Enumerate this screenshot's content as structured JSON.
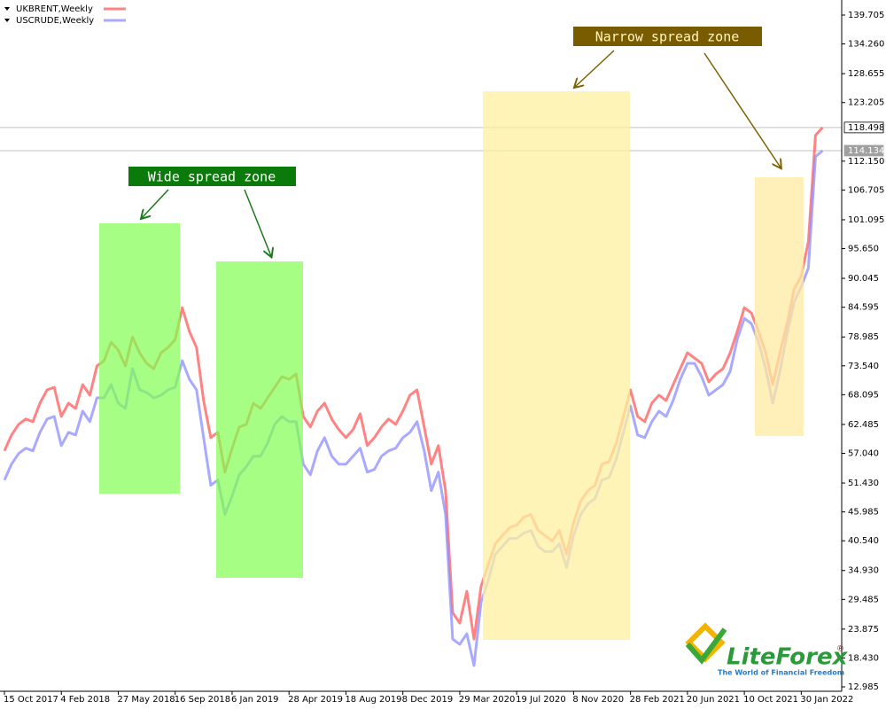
{
  "chart_data": {
    "type": "line",
    "categories": [
      "15 Oct 2017",
      null,
      null,
      null,
      null,
      null,
      null,
      null,
      "4 Feb 2018",
      null,
      null,
      null,
      null,
      null,
      null,
      null,
      "27 May 2018",
      null,
      null,
      null,
      null,
      null,
      null,
      null,
      "16 Sep 2018",
      null,
      null,
      null,
      null,
      null,
      null,
      null,
      "6 Jan 2019",
      null,
      null,
      null,
      null,
      null,
      null,
      null,
      "28 Apr 2019",
      null,
      null,
      null,
      null,
      null,
      null,
      null,
      "18 Aug 2019",
      null,
      null,
      null,
      null,
      null,
      null,
      null,
      "8 Dec 2019",
      null,
      null,
      null,
      null,
      null,
      null,
      null,
      "29 Mar 2020",
      null,
      null,
      null,
      null,
      null,
      null,
      null,
      "19 Jul 2020",
      null,
      null,
      null,
      null,
      null,
      null,
      null,
      "8 Nov 2020",
      null,
      null,
      null,
      null,
      null,
      null,
      null,
      "28 Feb 2021",
      null,
      null,
      null,
      null,
      null,
      null,
      null,
      "20 Jun 2021",
      null,
      null,
      null,
      null,
      null,
      null,
      null,
      "10 Oct 2021",
      null,
      null,
      null,
      null,
      null,
      null,
      null,
      "30 Jan 2022",
      null,
      null,
      null
    ],
    "series": [
      {
        "name": "UKBRENT,Weekly",
        "color": "#ff5a5a",
        "values": [
          57.5,
          60.5,
          62.5,
          63.5,
          63,
          66.5,
          69,
          69.5,
          64,
          66.5,
          65.5,
          70,
          68,
          73.5,
          74.5,
          78,
          76.5,
          73.5,
          79,
          76,
          74,
          73,
          76,
          77,
          78.5,
          84.5,
          80,
          77,
          67,
          60,
          61,
          53.5,
          58,
          62,
          62.5,
          66.5,
          65.5,
          67.5,
          69.5,
          71.5,
          71,
          72,
          64,
          62,
          65,
          66.5,
          63.5,
          61.5,
          60,
          61.5,
          64.5,
          58.5,
          60,
          62,
          63.5,
          62.5,
          65,
          68,
          69,
          62,
          55,
          58.5,
          50,
          27,
          25,
          31,
          22,
          32,
          36,
          40,
          41.5,
          43,
          43.5,
          45,
          45.5,
          42.5,
          41.5,
          40.5,
          42.5,
          38,
          44,
          48,
          50,
          51,
          55,
          55.5,
          59,
          64,
          69,
          64,
          63,
          66.5,
          68,
          67,
          70,
          73,
          76,
          75,
          74,
          70.5,
          72,
          73,
          76,
          80,
          84.5,
          83.5,
          80,
          76,
          70,
          76,
          81.5,
          88,
          90.5,
          97,
          117,
          118.498
        ]
      },
      {
        "name": "USCRUDE,Weekly",
        "color": "#8c8cff",
        "values": [
          52,
          55,
          57,
          58,
          57.5,
          61,
          63.5,
          64,
          58.5,
          61,
          60.5,
          65,
          63,
          67.5,
          67.5,
          70,
          66.5,
          65.5,
          73,
          69,
          68.5,
          67.5,
          68,
          69,
          69.5,
          74.5,
          71,
          69,
          60,
          51,
          52,
          45.5,
          49,
          53,
          54.5,
          56.5,
          56.5,
          59,
          62.5,
          64,
          63,
          63,
          55,
          53,
          57.5,
          60,
          56.5,
          55,
          55,
          56.5,
          58,
          53.5,
          54,
          56.5,
          57.5,
          58,
          60,
          61,
          63,
          57.5,
          50,
          53.5,
          45.5,
          22,
          21,
          23,
          17,
          29,
          33,
          38,
          39.5,
          41,
          41,
          42,
          42.5,
          39.5,
          38.5,
          38.5,
          40,
          35.5,
          41.5,
          45.5,
          47.5,
          48.5,
          52,
          52.5,
          56,
          61,
          66,
          60.5,
          60,
          63,
          65,
          64,
          67,
          71,
          74,
          74,
          71.5,
          68,
          69,
          70,
          72.5,
          78.5,
          82.5,
          81.5,
          78,
          73,
          66.5,
          72.5,
          79.5,
          85.5,
          88.5,
          92,
          113,
          114.134
        ]
      }
    ],
    "ylim": [
      12.15,
      142.55
    ],
    "yticks": [
      139.705,
      {
        "value": 134.26,
        "label": "134.260"
      },
      128.655,
      123.205,
      {
        "value": 112.15,
        "label": "112.150"
      },
      106.705,
      101.095,
      {
        "value": 95.65,
        "label": "95.650"
      },
      90.045,
      84.595,
      78.985,
      {
        "value": 73.54,
        "label": "73.540"
      },
      68.095,
      62.485,
      {
        "value": 57.04,
        "label": "57.040"
      },
      {
        "value": 51.43,
        "label": "51.430"
      },
      45.985,
      {
        "value": 40.54,
        "label": "40.540"
      },
      {
        "value": 34.93,
        "label": "34.930"
      },
      29.485,
      23.875,
      {
        "value": 18.43,
        "label": "18.430"
      },
      12.985
    ],
    "annotations": [
      "Wide spread zone",
      "Narrow spread zone"
    ],
    "logo": {
      "name": "LiteForex",
      "mark": "®",
      "tagline": "The World of Financial Freedom"
    }
  }
}
